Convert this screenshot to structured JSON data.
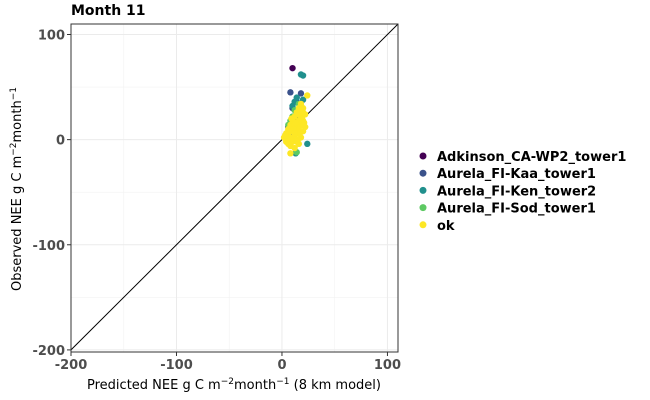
{
  "chart_data": {
    "type": "scatter",
    "title": "Month 11",
    "xlabel": {
      "pre": "Predicted NEE g C m",
      "sup1": "−2",
      "mid": "month",
      "sup2": "−1",
      "post": " (8 km model)"
    },
    "ylabel": {
      "pre": "Observed NEE g C m",
      "sup1": "−2",
      "mid": "month",
      "sup2": "−1",
      "post": ""
    },
    "xlim": [
      -200,
      110
    ],
    "ylim": [
      -202,
      110
    ],
    "xticks": [
      -200,
      -100,
      0,
      100
    ],
    "yticks": [
      -200,
      -100,
      0,
      100
    ],
    "grid": true,
    "reference_line": "1:1",
    "legend_position": "right",
    "series": [
      {
        "name": "Adkinson_CA-WP2_tower1",
        "color": "#440154",
        "points": [
          [
            10,
            68
          ]
        ]
      },
      {
        "name": "Aurela_FI-Kaa_tower1",
        "color": "#3b528b",
        "points": [
          [
            8,
            45
          ],
          [
            18,
            44
          ],
          [
            14,
            36
          ],
          [
            10,
            30
          ],
          [
            16,
            22
          ],
          [
            12,
            18
          ],
          [
            6,
            12
          ],
          [
            9,
            6
          ]
        ]
      },
      {
        "name": "Aurela_FI-Ken_tower2",
        "color": "#21908d",
        "points": [
          [
            18,
            62
          ],
          [
            20,
            61
          ],
          [
            14,
            40
          ],
          [
            12,
            36
          ],
          [
            24,
            -4
          ],
          [
            13,
            -13
          ],
          [
            10,
            32
          ],
          [
            20,
            38
          ],
          [
            14,
            25
          ]
        ]
      },
      {
        "name": "Aurela_FI-Sod_tower1",
        "color": "#5dc963",
        "points": [
          [
            16,
            34
          ],
          [
            12,
            28
          ],
          [
            10,
            22
          ],
          [
            6,
            14
          ],
          [
            14,
            -12
          ],
          [
            8,
            18
          ]
        ]
      },
      {
        "name": "ok",
        "color": "#fde725",
        "points": [
          [
            24,
            42
          ],
          [
            8,
            -13
          ],
          [
            2,
            2
          ],
          [
            4,
            6
          ],
          [
            6,
            10
          ],
          [
            8,
            14
          ],
          [
            10,
            18
          ],
          [
            12,
            22
          ],
          [
            14,
            26
          ],
          [
            16,
            30
          ],
          [
            18,
            34
          ],
          [
            20,
            30
          ],
          [
            22,
            24
          ],
          [
            20,
            18
          ],
          [
            18,
            14
          ],
          [
            16,
            10
          ],
          [
            14,
            6
          ],
          [
            12,
            2
          ],
          [
            10,
            -2
          ],
          [
            8,
            -6
          ],
          [
            12,
            -8
          ],
          [
            16,
            -4
          ],
          [
            18,
            2
          ],
          [
            20,
            8
          ],
          [
            22,
            12
          ],
          [
            6,
            4
          ],
          [
            4,
            -2
          ],
          [
            10,
            8
          ],
          [
            14,
            12
          ],
          [
            16,
            18
          ],
          [
            18,
            22
          ],
          [
            20,
            26
          ],
          [
            12,
            14
          ],
          [
            8,
            2
          ],
          [
            6,
            -4
          ],
          [
            15,
            0
          ],
          [
            17,
            6
          ],
          [
            19,
            20
          ],
          [
            21,
            16
          ],
          [
            11,
            10
          ],
          [
            13,
            16
          ],
          [
            9,
            20
          ],
          [
            7,
            8
          ],
          [
            5,
            0
          ],
          [
            3,
            4
          ],
          [
            16,
            24
          ],
          [
            18,
            28
          ],
          [
            20,
            14
          ],
          [
            14,
            -2
          ],
          [
            12,
            6
          ]
        ]
      }
    ]
  }
}
